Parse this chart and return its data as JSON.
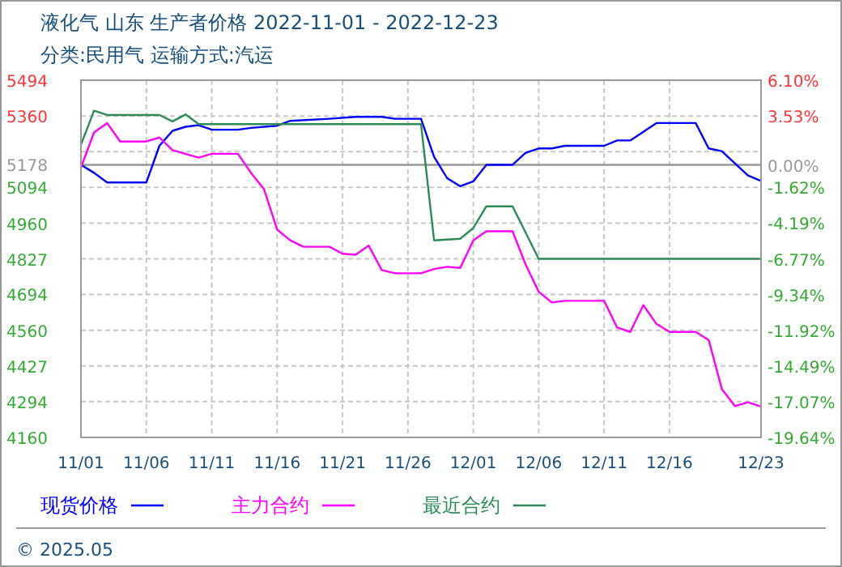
{
  "chart_data": {
    "type": "line",
    "title": "液化气 山东 生产者价格 2022-11-01 - 2022-12-23",
    "subtitle": "分类:民用气 运输方式:汽运",
    "annotations": [
      "© 2025.05"
    ],
    "xlim": [
      "2022-11-01",
      "2022-12-23"
    ],
    "xticks": [
      {
        "value": "2022-11-01",
        "label": "11/01"
      },
      {
        "value": "2022-11-06",
        "label": "11/06"
      },
      {
        "value": "2022-11-11",
        "label": "11/11"
      },
      {
        "value": "2022-11-16",
        "label": "11/16"
      },
      {
        "value": "2022-11-21",
        "label": "11/21"
      },
      {
        "value": "2022-11-26",
        "label": "11/26"
      },
      {
        "value": "2022-12-01",
        "label": "12/01"
      },
      {
        "value": "2022-12-06",
        "label": "12/06"
      },
      {
        "value": "2022-12-11",
        "label": "12/11"
      },
      {
        "value": "2022-12-16",
        "label": "12/16"
      },
      {
        "value": "2022-12-23",
        "label": "12/23"
      }
    ],
    "ylim": [
      4160,
      5494
    ],
    "yticks": [
      5494,
      5360,
      {
        "value": 5227,
        "label": null
      },
      5094,
      4960,
      4827,
      4694,
      4560,
      4427,
      4294,
      4160
    ],
    "y2lim": [
      -19.64,
      6.1
    ],
    "y2ticks": [
      {
        "value": 6.1,
        "label": "6.10%"
      },
      {
        "value": 3.53,
        "label": "3.53%"
      },
      {
        "value": 0.96,
        "label": null
      },
      {
        "value": 0,
        "label": "0.00%"
      },
      {
        "value": -1.62,
        "label": "-1.62%"
      },
      {
        "value": -4.19,
        "label": "-4.19%"
      },
      {
        "value": -6.77,
        "label": "-6.77%"
      },
      {
        "value": -9.34,
        "label": "-9.34%"
      },
      {
        "value": -11.92,
        "label": "-11.92%"
      },
      {
        "value": -14.49,
        "label": "-14.49%"
      },
      {
        "value": -17.07,
        "label": "-17.07%"
      },
      {
        "value": -19.64,
        "label": "-19.64%"
      }
    ],
    "ref_lines": [
      {
        "axis": "y",
        "value": 5178,
        "label": "5178",
        "color": "#999999"
      }
    ],
    "grid": true,
    "legend": "bottom",
    "series": [
      {
        "name": "现货价格",
        "color": "#0000ff",
        "x": [
          "2022-11-01",
          "2022-11-02",
          "2022-11-03",
          "2022-11-06",
          "2022-11-07",
          "2022-11-08",
          "2022-11-09",
          "2022-11-10",
          "2022-11-11",
          "2022-11-13",
          "2022-11-14",
          "2022-11-16",
          "2022-11-17",
          "2022-11-20",
          "2022-11-22",
          "2022-11-24",
          "2022-11-25",
          "2022-11-27",
          "2022-11-28",
          "2022-11-29",
          "2022-11-30",
          "2022-12-01",
          "2022-12-02",
          "2022-12-04",
          "2022-12-05",
          "2022-12-06",
          "2022-12-07",
          "2022-12-08",
          "2022-12-11",
          "2022-12-12",
          "2022-12-13",
          "2022-12-15",
          "2022-12-18",
          "2022-12-19",
          "2022-12-20",
          "2022-12-22",
          "2022-12-23"
        ],
        "values": [
          5178,
          5148,
          5112,
          5112,
          5249,
          5305,
          5320,
          5326,
          5309,
          5309,
          5316,
          5324,
          5342,
          5350,
          5357,
          5357,
          5350,
          5350,
          5208,
          5128,
          5098,
          5116,
          5178,
          5178,
          5223,
          5239,
          5239,
          5249,
          5249,
          5269,
          5269,
          5334,
          5334,
          5239,
          5229,
          5138,
          5118
        ]
      },
      {
        "name": "主力合约",
        "color": "#ff00ff",
        "x": [
          "2022-11-01",
          "2022-11-02",
          "2022-11-03",
          "2022-11-04",
          "2022-11-06",
          "2022-11-07",
          "2022-11-08",
          "2022-11-10",
          "2022-11-11",
          "2022-11-13",
          "2022-11-14",
          "2022-11-15",
          "2022-11-16",
          "2022-11-17",
          "2022-11-18",
          "2022-11-20",
          "2022-11-21",
          "2022-11-22",
          "2022-11-23",
          "2022-11-24",
          "2022-11-25",
          "2022-11-27",
          "2022-11-28",
          "2022-11-29",
          "2022-11-30",
          "2022-12-01",
          "2022-12-02",
          "2022-12-04",
          "2022-12-05",
          "2022-12-06",
          "2022-12-07",
          "2022-12-08",
          "2022-12-11",
          "2022-12-12",
          "2022-12-13",
          "2022-12-14",
          "2022-12-15",
          "2022-12-16",
          "2022-12-18",
          "2022-12-19",
          "2022-12-20",
          "2022-12-21",
          "2022-12-22",
          "2022-12-23"
        ],
        "values": [
          5168,
          5299,
          5334,
          5265,
          5265,
          5280,
          5233,
          5205,
          5219,
          5219,
          5148,
          5087,
          4936,
          4896,
          4872,
          4872,
          4846,
          4842,
          4876,
          4785,
          4773,
          4773,
          4789,
          4797,
          4793,
          4896,
          4930,
          4930,
          4806,
          4704,
          4664,
          4670,
          4670,
          4570,
          4554,
          4654,
          4584,
          4554,
          4554,
          4524,
          4341,
          4277,
          4291,
          4275
        ]
      },
      {
        "name": "最近合约",
        "color": "#2e8b57",
        "x": [
          "2022-11-01",
          "2022-11-02",
          "2022-11-03",
          "2022-11-07",
          "2022-11-08",
          "2022-11-09",
          "2022-11-10",
          "2022-11-27",
          "2022-11-28",
          "2022-11-30",
          "2022-12-01",
          "2022-12-02",
          "2022-12-04",
          "2022-12-06",
          "2022-12-23"
        ],
        "values": [
          5253,
          5380,
          5364,
          5364,
          5340,
          5366,
          5330,
          5330,
          4896,
          4902,
          4942,
          5023,
          5023,
          4827,
          4827
        ]
      }
    ]
  }
}
